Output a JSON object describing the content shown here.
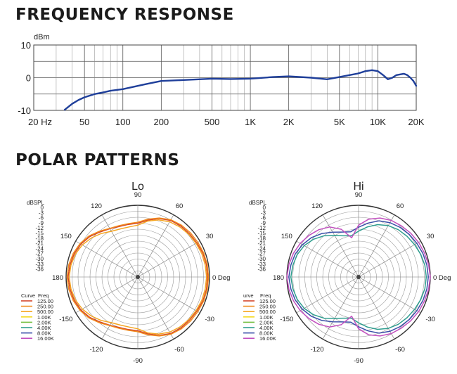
{
  "headings": {
    "frequency_response": "FREQUENCY RESPONSE",
    "polar_patterns": "POLAR PATTERNS"
  },
  "chart_data": [
    {
      "type": "line",
      "title": "FREQUENCY RESPONSE",
      "ylabel": "dBm",
      "x_scale": "log",
      "x_tick_labels": [
        "20 Hz",
        "50",
        "100",
        "200",
        "500",
        "1K",
        "2K",
        "5K",
        "10K",
        "20K"
      ],
      "x_ticks": [
        20,
        50,
        100,
        200,
        500,
        1000,
        2000,
        5000,
        10000,
        20000
      ],
      "y_tick_labels": [
        "10",
        "0",
        "-10"
      ],
      "y_ticks": [
        10,
        0,
        -10
      ],
      "xlim": [
        20,
        20000
      ],
      "ylim": [
        -10,
        10
      ],
      "grid": true,
      "series": [
        {
          "color": "#1f3f9a",
          "x": [
            35,
            40,
            45,
            50,
            60,
            70,
            80,
            100,
            150,
            200,
            300,
            500,
            700,
            1000,
            1500,
            2000,
            3000,
            4000,
            5000,
            6000,
            7000,
            8000,
            9000,
            10000,
            11000,
            12000,
            13000,
            14000,
            15000,
            16000,
            17000,
            18000,
            19000,
            20000
          ],
          "y": [
            -9.8,
            -8.0,
            -6.8,
            -6.0,
            -5.0,
            -4.5,
            -4.0,
            -3.5,
            -2.0,
            -1.0,
            -0.7,
            -0.3,
            -0.4,
            -0.3,
            0.2,
            0.4,
            0.0,
            -0.5,
            0.2,
            0.8,
            1.3,
            2.0,
            2.3,
            2.0,
            0.8,
            -0.5,
            0.0,
            0.8,
            1.0,
            1.2,
            0.8,
            0.0,
            -1.0,
            -2.5
          ]
        }
      ]
    },
    {
      "type": "polar",
      "title": "Lo",
      "radial_label": "dBSPL",
      "radial_ticks": [
        "0",
        "-3",
        "-6",
        "-9",
        "-12",
        "-15",
        "-18",
        "-21",
        "-24",
        "-27",
        "-30",
        "-33",
        "-36"
      ],
      "angle_labels": {
        "0": "0 Deg",
        "30": "30",
        "60": "60",
        "90": "90",
        "120": "120",
        "150": "150",
        "180": "180",
        "-150": "-150",
        "-120": "-120",
        "-90": "-90",
        "-60": "-60",
        "-30": "-30"
      },
      "rlim": [
        -36,
        0
      ],
      "legend_headers": [
        "Curve",
        "Freq"
      ],
      "legend": [
        {
          "freq": "125.00",
          "color": "#d4452a"
        },
        {
          "freq": "250.00",
          "color": "#f08a1c"
        },
        {
          "freq": "500.00",
          "color": "#f5a623"
        },
        {
          "freq": "1.00K",
          "color": "#f5d81e"
        },
        {
          "freq": "2.00K",
          "color": "#76c043"
        },
        {
          "freq": "4.00K",
          "color": "#2f9e8f"
        },
        {
          "freq": "8.00K",
          "color": "#3a4fa8"
        },
        {
          "freq": "16.00K",
          "color": "#c24fbf"
        }
      ],
      "series": [
        {
          "freq": "125.00",
          "color": "#d4452a",
          "r": [
            -1.0,
            -1.0,
            -1.2,
            -1.8,
            -2.2,
            -2.5,
            -3.2,
            -4.8,
            -7.0,
            -9.0,
            -9.2,
            -9.0,
            -8.0,
            -6.5,
            -4.5,
            -3.0,
            -2.0,
            -1.4,
            -1.0
          ]
        },
        {
          "freq": "250.00",
          "color": "#f08a1c",
          "r": [
            -0.5,
            -0.6,
            -0.8,
            -1.2,
            -1.5,
            -2.0,
            -2.8,
            -4.5,
            -6.5,
            -8.5,
            -8.8,
            -8.6,
            -7.8,
            -6.0,
            -4.0,
            -2.5,
            -1.5,
            -0.8,
            -0.5
          ]
        },
        {
          "freq": "500.00",
          "color": "#f5a623",
          "r": [
            -1.5,
            -1.6,
            -1.8,
            -2.2,
            -2.6,
            -3.2,
            -4.0,
            -5.5,
            -7.5,
            -10.0,
            -10.5,
            -10.3,
            -9.5,
            -7.5,
            -5.5,
            -3.8,
            -2.6,
            -1.9,
            -1.5
          ]
        }
      ]
    },
    {
      "type": "polar",
      "title": "Hi",
      "radial_label": "dBSPL",
      "radial_ticks": [
        "0",
        "-3",
        "-6",
        "-9",
        "-12",
        "-15",
        "-18",
        "-21",
        "-24",
        "-27",
        "-30",
        "-33",
        "-36"
      ],
      "angle_labels": {
        "0": "0 Deg",
        "30": "30",
        "60": "60",
        "90": "90",
        "120": "120",
        "150": "150",
        "180": "180",
        "-150": "-150",
        "-120": "-120",
        "-90": "-90",
        "-60": "-60",
        "-30": "-30"
      },
      "rlim": [
        -36,
        0
      ],
      "legend_headers": [
        "urve",
        "Freq"
      ],
      "legend": [
        {
          "freq": "125.00",
          "color": "#d4452a"
        },
        {
          "freq": "250.00",
          "color": "#f08a1c"
        },
        {
          "freq": "500.00",
          "color": "#f5a623"
        },
        {
          "freq": "1.00K",
          "color": "#f5d81e"
        },
        {
          "freq": "2.00K",
          "color": "#76c043"
        },
        {
          "freq": "4.00K",
          "color": "#2f9e8f"
        },
        {
          "freq": "8.00K",
          "color": "#3a4fa8"
        },
        {
          "freq": "16.00K",
          "color": "#c24fbf"
        }
      ],
      "series": [
        {
          "freq": "4.00K",
          "color": "#2f9e8f",
          "r": [
            -2.0,
            -2.2,
            -2.8,
            -3.5,
            -4.2,
            -5.0,
            -6.2,
            -8.0,
            -10.5,
            -13.0,
            -15.0,
            -14.0,
            -12.0,
            -9.0,
            -6.5,
            -4.5,
            -3.2,
            -2.5,
            -2.0
          ]
        },
        {
          "freq": "8.00K",
          "color": "#3a4fa8",
          "r": [
            -1.0,
            -1.2,
            -1.6,
            -2.2,
            -2.8,
            -3.5,
            -4.5,
            -6.0,
            -8.5,
            -11.0,
            -13.0,
            -12.0,
            -10.0,
            -7.5,
            -5.2,
            -3.5,
            -2.2,
            -1.5,
            -1.0
          ]
        },
        {
          "freq": "16.00K",
          "color": "#c24fbf",
          "r": [
            0.0,
            -0.3,
            -0.8,
            -1.2,
            -1.8,
            -2.5,
            -3.2,
            -4.5,
            -6.5,
            -10.0,
            -16.0,
            -10.5,
            -7.0,
            -5.0,
            -3.5,
            -2.2,
            -1.2,
            -0.5,
            0.0
          ]
        }
      ]
    }
  ]
}
